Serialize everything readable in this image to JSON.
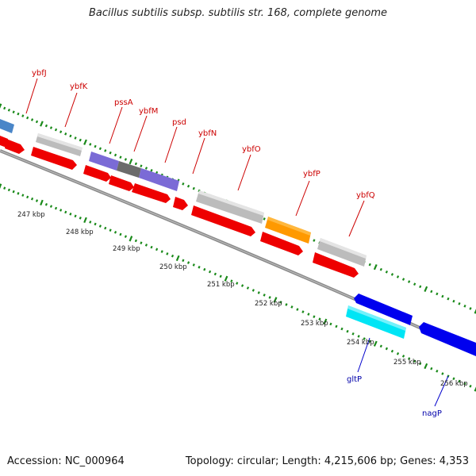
{
  "title": "Bacillus subtilis subsp. subtilis str. 168, complete genome",
  "footer": {
    "accession": "Accession: NC_000964",
    "summary": "Topology: circular; Length: 4,215,606 bp; Genes: 4,353"
  },
  "colors": {
    "label_plus": "#cc0000",
    "label_minus": "#0000aa",
    "leader_plus": "#cc0000",
    "leader_minus": "#0000cc",
    "tick": "#1a8a1a",
    "backbone": "#7a7a7a",
    "cds": "#ee0000",
    "gray_gene": "#bcbcbc",
    "steelblue": "#4a86c8",
    "purple": "#7b6bd6",
    "dark_gray": "#6b6b6b",
    "orange": "#ff9900",
    "cyan": "#00e5f5",
    "blue": "#0000ee"
  },
  "scale_labels": [
    "247 kbp",
    "248 kbp",
    "249 kbp",
    "250 kbp",
    "251 kbp",
    "252 kbp",
    "253 kbp",
    "254 kbp",
    "255 kbp",
    "256 kbp"
  ],
  "genes_plus": [
    {
      "name": "ybfJ",
      "color_key": "label_plus"
    },
    {
      "name": "ybfK",
      "color_key": "label_plus"
    },
    {
      "name": "pssA",
      "color_key": "label_plus"
    },
    {
      "name": "ybfM",
      "color_key": "label_plus"
    },
    {
      "name": "psd",
      "color_key": "label_plus"
    },
    {
      "name": "ybfN",
      "color_key": "label_plus"
    },
    {
      "name": "ybfO",
      "color_key": "label_plus"
    },
    {
      "name": "ybfP",
      "color_key": "label_plus"
    },
    {
      "name": "ybfQ",
      "color_key": "label_plus"
    }
  ],
  "genes_minus": [
    {
      "name": "gltP",
      "color_key": "label_minus"
    },
    {
      "name": "nagP",
      "color_key": "label_minus"
    }
  ]
}
